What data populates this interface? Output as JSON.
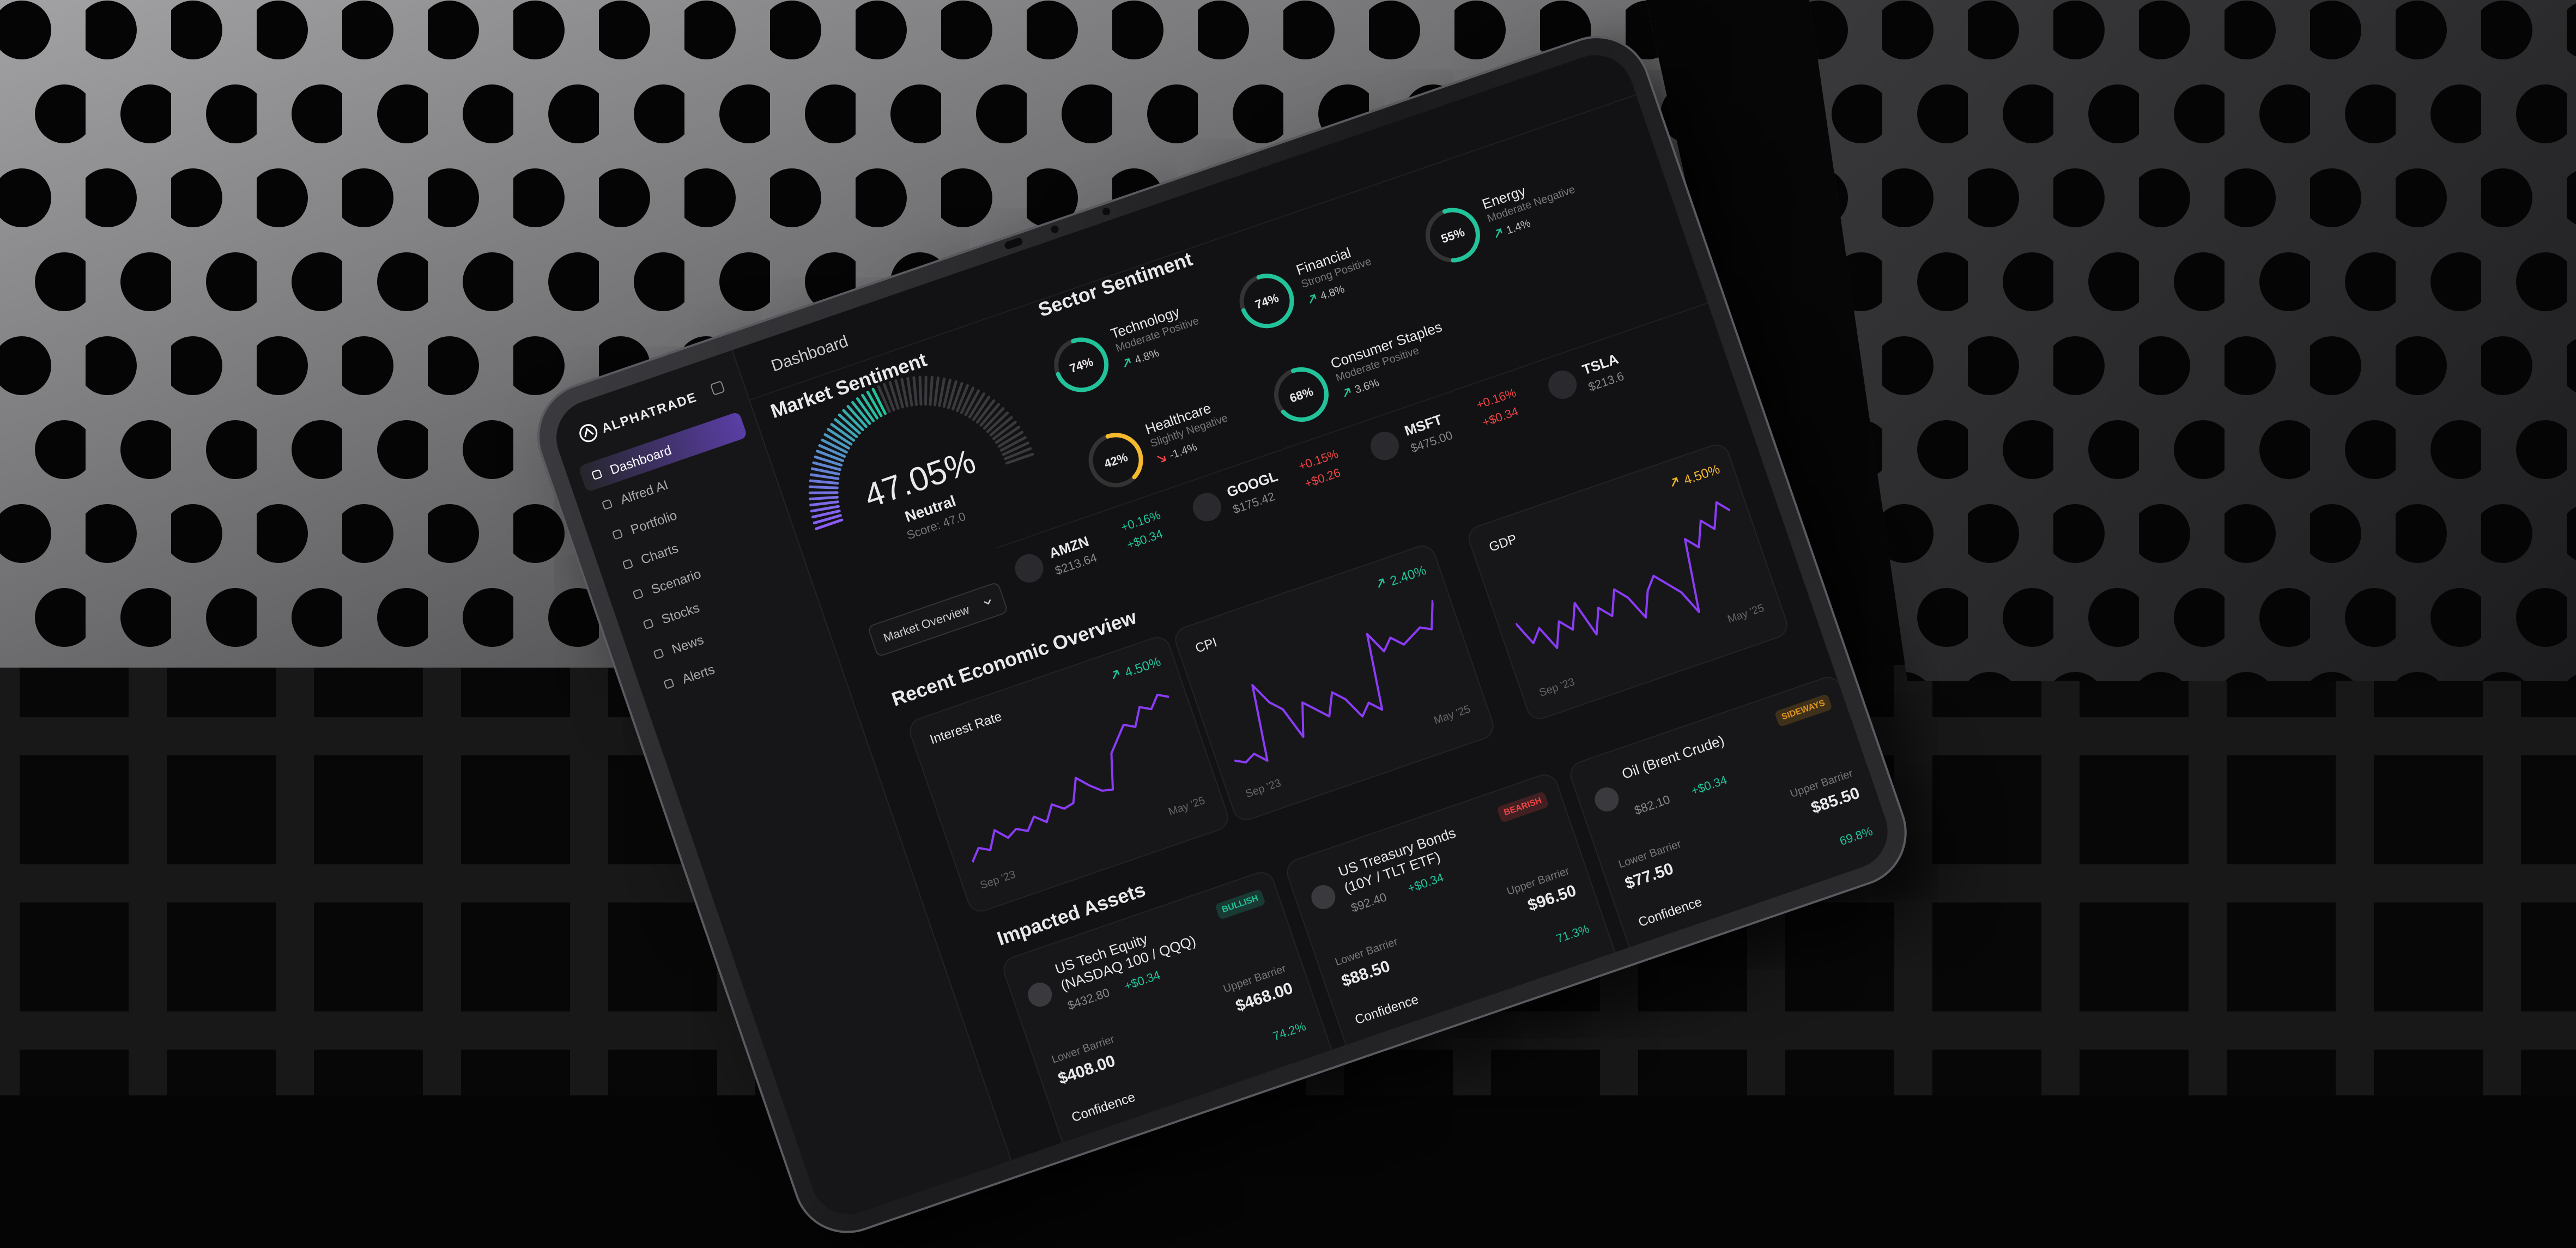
{
  "sidebar": {
    "brand": "ALPHATRADE",
    "nav": [
      "Dashboard",
      "Alfred AI",
      "Portfolio",
      "Charts",
      "Scenario",
      "Stocks",
      "News",
      "Alerts"
    ]
  },
  "header": {
    "title": "Dashboard"
  },
  "market_sentiment": {
    "title": "Market Sentiment",
    "value": "47.05%",
    "label": "Neutral",
    "score": "Score: 47.0",
    "dropdown": "Market Overview"
  },
  "sector_sentiment": {
    "title": "Sector Sentiment",
    "sectors": [
      {
        "percent": "74%",
        "name": "Technology",
        "status": "Moderate Positive",
        "change": "4.8%",
        "color": "#22c39a"
      },
      {
        "percent": "74%",
        "name": "Financial",
        "status": "Strong Positive",
        "change": "4.8%",
        "color": "#22c39a"
      },
      {
        "percent": "55%",
        "name": "Energy",
        "status": "Moderate Negative",
        "change": "1.4%",
        "color": "#22c39a"
      },
      {
        "percent": "42%",
        "name": "Healthcare",
        "status": "Slightly Negative",
        "change": "-1.4%",
        "color": "#f5b82e"
      },
      {
        "percent": "68%",
        "name": "Consumer Staples",
        "status": "Moderate Positive",
        "change": "3.6%",
        "color": "#22c39a"
      }
    ]
  },
  "tickers": [
    {
      "symbol": "AMZN",
      "price": "$213.64",
      "change_pct": "+0.16%",
      "change": "+$0.34",
      "color": "#22c39a"
    },
    {
      "symbol": "GOOGL",
      "price": "$175.42",
      "change_pct": "+0.15%",
      "change": "+$0.26",
      "color": "#ef4444"
    },
    {
      "symbol": "MSFT",
      "price": "$475.00",
      "change_pct": "+0.16%",
      "change": "+$0.34",
      "color": "#ef4444"
    },
    {
      "symbol": "TSLA",
      "price": "$213.6"
    }
  ],
  "economic_overview": {
    "title": "Recent Economic Overview",
    "line_color": "#8b3cf7",
    "charts": [
      {
        "name": "Interest Rate",
        "change": "4.50%",
        "color": "#22c39a",
        "start": "Sep '23",
        "end": "May '25",
        "values": [
          1,
          2,
          1.5,
          3,
          2,
          2.5,
          2,
          3,
          2.2,
          3.5,
          2.8,
          3,
          5,
          4,
          3.2,
          3,
          6,
          7,
          8,
          7.5,
          9,
          8.5,
          9.5,
          9
        ]
      },
      {
        "name": "CPI",
        "change": "2.40%",
        "color": "#22c39a",
        "start": "Sep '23",
        "end": "May '25",
        "values": [
          3,
          2.5,
          3,
          2,
          9,
          7,
          6,
          3,
          6,
          5,
          4,
          6,
          5,
          3,
          4,
          3,
          10,
          8,
          9,
          8,
          8.5,
          9,
          8.5,
          11
        ]
      },
      {
        "name": "GDP",
        "change": "4.50%",
        "color": "#f5b82e",
        "start": "Sep '23",
        "end": "May '25",
        "values": [
          6,
          4,
          5,
          3,
          5,
          4,
          6,
          3,
          5,
          4,
          6,
          5,
          3,
          5,
          6,
          5,
          4,
          2,
          8,
          7,
          9,
          8,
          10,
          9
        ]
      }
    ]
  },
  "impacted_assets": {
    "title": "Impacted Assets",
    "lower_label": "Lower Barrier",
    "upper_label": "Upper Barrier",
    "confidence_label": "Confidence",
    "assets": [
      {
        "name": "US Tech Equity (NASDAQ 100 / QQQ)",
        "badge": "BULLISH",
        "badge_color": "#22c39a",
        "price": "$432.80",
        "change": "+$0.34",
        "lower": "$408.00",
        "upper": "$468.00",
        "confidence": "74.2%"
      },
      {
        "name": "US Treasury Bonds (10Y / TLT ETF)",
        "badge": "BEARISH",
        "badge_color": "#ef4444",
        "price": "$92.40",
        "change": "+$0.34",
        "lower": "$88.50",
        "upper": "$96.50",
        "confidence": "71.3%"
      },
      {
        "name": "Oil (Brent Crude)",
        "badge": "SIDEWAYS",
        "badge_color": "#e0941f",
        "price": "$82.10",
        "change": "+$0.34",
        "lower": "$77.50",
        "upper": "$85.50",
        "confidence": "69.8%"
      }
    ]
  }
}
